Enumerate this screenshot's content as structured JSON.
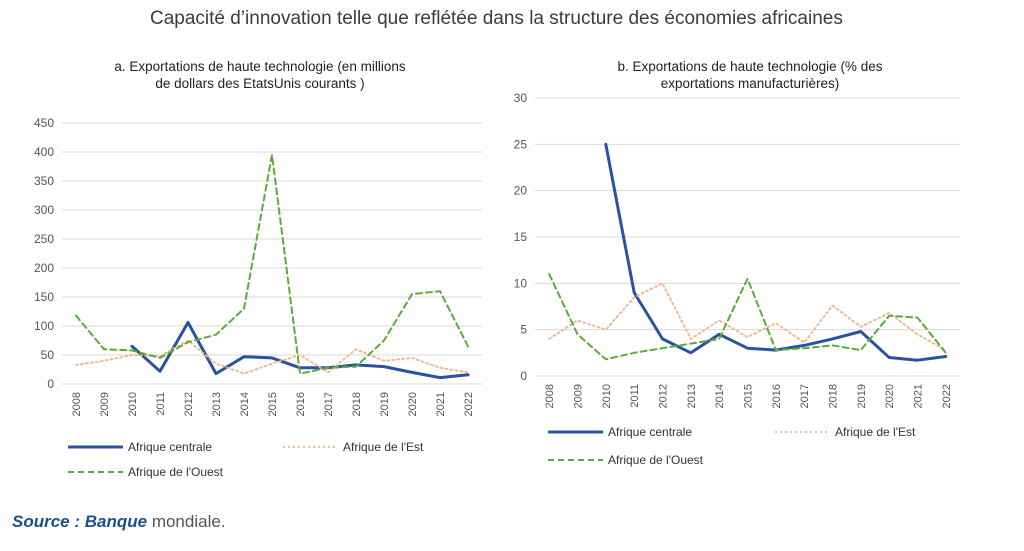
{
  "title": "Capacité d’innovation telle que reflétée dans la structure des économies africaines",
  "source": {
    "prefix": "Source : Banque",
    "suffix": " mondiale."
  },
  "colors": {
    "centrale": "#2a52a0",
    "est": "#f2b28a",
    "ouest": "#5aab3c",
    "grid": "#d9d9d9",
    "axis_text": "#555555"
  },
  "chart_data": [
    {
      "type": "line",
      "title_line1": "a. Exportations de haute technologie (en millions",
      "title_line2": "de dollars des EtatsUnis courants )",
      "categories": [
        "2008",
        "2009",
        "2010",
        "2011",
        "2012",
        "2013",
        "2014",
        "2015",
        "2016",
        "2017",
        "2018",
        "2019",
        "2020",
        "2021",
        "2022"
      ],
      "ylim": [
        0,
        450
      ],
      "yticks": [
        0,
        50,
        100,
        150,
        200,
        250,
        300,
        350,
        400,
        450
      ],
      "legend_position": "bottom",
      "series": [
        {
          "name": "Afrique centrale",
          "style": "solid",
          "values": [
            null,
            null,
            65,
            22,
            106,
            18,
            47,
            45,
            28,
            28,
            33,
            30,
            20,
            11,
            16
          ]
        },
        {
          "name": "Afrique de l'Est",
          "style": "dotted",
          "values": [
            33,
            40,
            50,
            48,
            75,
            35,
            18,
            35,
            50,
            20,
            60,
            40,
            45,
            28,
            20
          ]
        },
        {
          "name": "Afrique de l'Ouest",
          "style": "dashed",
          "values": [
            118,
            60,
            58,
            45,
            72,
            85,
            130,
            395,
            18,
            28,
            30,
            75,
            155,
            160,
            65
          ]
        }
      ]
    },
    {
      "type": "line",
      "title_line1": "b. Exportations de haute technologie (% des",
      "title_line2": "exportations manufacturières)",
      "categories": [
        "2008",
        "2009",
        "2010",
        "2011",
        "2012",
        "2013",
        "2014",
        "2015",
        "2016",
        "2017",
        "2018",
        "2019",
        "2020",
        "2021",
        "2022"
      ],
      "ylim": [
        0,
        30
      ],
      "yticks": [
        0,
        5,
        10,
        15,
        20,
        25,
        30
      ],
      "legend_position": "bottom",
      "series": [
        {
          "name": "Afrique centrale",
          "style": "solid",
          "values": [
            null,
            null,
            25,
            9,
            4,
            2.5,
            4.5,
            3,
            2.8,
            3.3,
            4,
            4.8,
            2,
            1.7,
            2.1
          ]
        },
        {
          "name": "Afrique de l'Est",
          "style": "dotted",
          "values": [
            4,
            6,
            5,
            8.5,
            10,
            4,
            6,
            4.2,
            5.7,
            3.6,
            7.6,
            5.3,
            6.8,
            4.5,
            2.8
          ]
        },
        {
          "name": "Afrique de l'Ouest",
          "style": "dashed",
          "values": [
            11,
            4.5,
            1.8,
            2.5,
            3,
            3.5,
            4,
            10.5,
            2.8,
            3,
            3.3,
            2.8,
            6.5,
            6.3,
            2.5
          ]
        }
      ]
    }
  ]
}
